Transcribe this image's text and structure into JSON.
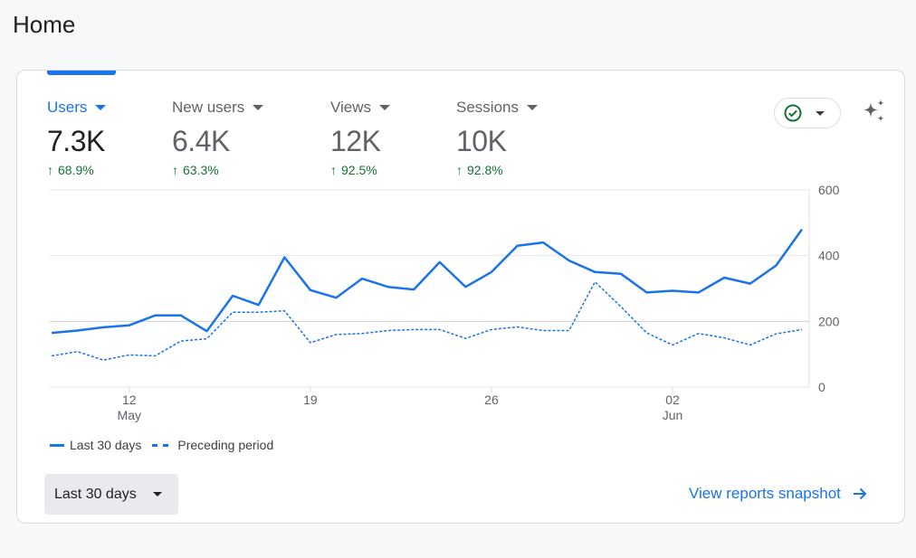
{
  "page": {
    "title": "Home"
  },
  "metrics": [
    {
      "label": "Users",
      "value": "7.3K",
      "change": "68.9%",
      "active": true
    },
    {
      "label": "New users",
      "value": "6.4K",
      "change": "63.3%",
      "active": false
    },
    {
      "label": "Views",
      "value": "12K",
      "change": "92.5%",
      "active": false
    },
    {
      "label": "Sessions",
      "value": "10K",
      "change": "92.8%",
      "active": false
    }
  ],
  "icons": {
    "change_arrow": "arrow-up-icon",
    "status": "check-circle-icon",
    "insights": "sparkle-icon",
    "link": "arrow-right-icon"
  },
  "colors": {
    "accent": "#1a73e8",
    "positive": "#137333",
    "grid": "#e0e0e0",
    "muted_text": "#5f6368"
  },
  "chart_data": {
    "type": "line",
    "ylim": [
      0,
      600
    ],
    "y_ticks": [
      "600",
      "400",
      "200",
      "0"
    ],
    "x_ticks": [
      {
        "day": "12",
        "month": "May",
        "index": 3
      },
      {
        "day": "19",
        "month": "",
        "index": 10
      },
      {
        "day": "26",
        "month": "",
        "index": 17
      },
      {
        "day": "02",
        "month": "Jun",
        "index": 24
      }
    ],
    "series": [
      {
        "name": "Last 30 days",
        "style": "solid",
        "values": [
          165,
          172,
          182,
          188,
          218,
          218,
          170,
          278,
          250,
          395,
          295,
          272,
          330,
          305,
          297,
          380,
          305,
          350,
          430,
          440,
          385,
          350,
          345,
          288,
          293,
          288,
          333,
          315,
          370,
          480
        ]
      },
      {
        "name": "Preceding period",
        "style": "dashed",
        "values": [
          95,
          108,
          82,
          98,
          95,
          140,
          147,
          228,
          228,
          232,
          135,
          160,
          163,
          172,
          175,
          175,
          148,
          175,
          183,
          172,
          172,
          320,
          245,
          165,
          128,
          163,
          150,
          128,
          162,
          175
        ]
      }
    ]
  },
  "legend": {
    "current": "Last 30 days",
    "previous": "Preceding period"
  },
  "controls": {
    "date_range": "Last 30 days",
    "view_link": "View reports snapshot"
  }
}
